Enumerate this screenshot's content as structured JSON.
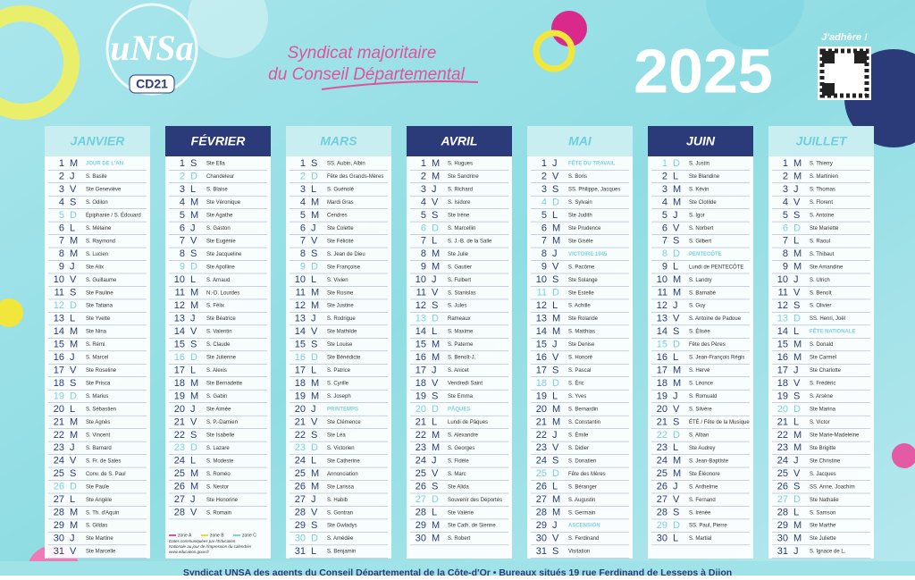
{
  "header": {
    "logo": "uNSa",
    "logo_sub": "CD21",
    "slogan": [
      "Syndicat majoritaire",
      "du Conseil Départemental"
    ],
    "year": "2025",
    "join": "J'adhère !"
  },
  "months": [
    {
      "name": "JANVIER",
      "days": [
        [
          1,
          "M",
          "JOUR DE L'AN"
        ],
        [
          2,
          "J",
          "S. Basile"
        ],
        [
          3,
          "V",
          "Ste Geneviève"
        ],
        [
          4,
          "S",
          "S. Odilon"
        ],
        [
          5,
          "D",
          "Épiphanie / S. Édouard"
        ],
        [
          6,
          "L",
          "S. Mélaine"
        ],
        [
          7,
          "M",
          "S. Raymond"
        ],
        [
          8,
          "M",
          "S. Lucien"
        ],
        [
          9,
          "J",
          "Ste Alix"
        ],
        [
          10,
          "V",
          "S. Guillaume"
        ],
        [
          11,
          "S",
          "Ste Pauline"
        ],
        [
          12,
          "D",
          "Ste Tatiana"
        ],
        [
          13,
          "L",
          "Ste Yvette"
        ],
        [
          14,
          "M",
          "Ste Nina"
        ],
        [
          15,
          "M",
          "S. Rémi"
        ],
        [
          16,
          "J",
          "S. Marcel"
        ],
        [
          17,
          "V",
          "Ste Roseline"
        ],
        [
          18,
          "S",
          "Ste Prisca"
        ],
        [
          19,
          "D",
          "S. Marius"
        ],
        [
          20,
          "L",
          "S. Sébastien"
        ],
        [
          21,
          "M",
          "Ste Agnès"
        ],
        [
          22,
          "M",
          "S. Vincent"
        ],
        [
          23,
          "J",
          "S. Barnard"
        ],
        [
          24,
          "V",
          "S. Fr. de Sales"
        ],
        [
          25,
          "S",
          "Conv. de S. Paul"
        ],
        [
          26,
          "D",
          "Ste Paule"
        ],
        [
          27,
          "L",
          "Ste Angèle"
        ],
        [
          28,
          "M",
          "S. Th. d'Aquin"
        ],
        [
          29,
          "M",
          "S. Gildas"
        ],
        [
          30,
          "J",
          "Ste Martine"
        ],
        [
          31,
          "V",
          "Ste Marcelle"
        ]
      ]
    },
    {
      "name": "FÉVRIER",
      "days": [
        [
          1,
          "S",
          "Ste Ella"
        ],
        [
          2,
          "D",
          "Chandeleur"
        ],
        [
          3,
          "L",
          "S. Blaise"
        ],
        [
          4,
          "M",
          "Ste Véronique"
        ],
        [
          5,
          "M",
          "Ste Agathe"
        ],
        [
          6,
          "J",
          "S. Gaston"
        ],
        [
          7,
          "V",
          "Ste Eugénie"
        ],
        [
          8,
          "S",
          "Ste Jacqueline"
        ],
        [
          9,
          "D",
          "Ste Apolline"
        ],
        [
          10,
          "L",
          "S. Arnaud"
        ],
        [
          11,
          "M",
          "N.-D. Lourdes"
        ],
        [
          12,
          "M",
          "S. Félix"
        ],
        [
          13,
          "J",
          "Ste Béatrice"
        ],
        [
          14,
          "V",
          "S. Valentin"
        ],
        [
          15,
          "S",
          "S. Claude"
        ],
        [
          16,
          "D",
          "Ste Julienne"
        ],
        [
          17,
          "L",
          "S. Alexis"
        ],
        [
          18,
          "M",
          "Ste Bernadette"
        ],
        [
          19,
          "M",
          "S. Gabin"
        ],
        [
          20,
          "J",
          "Ste Aimée"
        ],
        [
          21,
          "V",
          "S. P.-Damien"
        ],
        [
          22,
          "S",
          "Ste Isabelle"
        ],
        [
          23,
          "D",
          "S. Lazare"
        ],
        [
          24,
          "L",
          "S. Modeste"
        ],
        [
          25,
          "M",
          "S. Roméo"
        ],
        [
          26,
          "M",
          "S. Nestor"
        ],
        [
          27,
          "J",
          "Ste Honorine"
        ],
        [
          28,
          "V",
          "S. Romain"
        ]
      ]
    },
    {
      "name": "MARS",
      "days": [
        [
          1,
          "S",
          "SS. Aubin, Albin"
        ],
        [
          2,
          "D",
          "Fête des Grands-Mères"
        ],
        [
          3,
          "L",
          "S. Guénolé"
        ],
        [
          4,
          "M",
          "Mardi Gras"
        ],
        [
          5,
          "M",
          "Cendres"
        ],
        [
          6,
          "J",
          "Ste Colette"
        ],
        [
          7,
          "V",
          "Ste Félicité"
        ],
        [
          8,
          "S",
          "S. Jean de Dieu"
        ],
        [
          9,
          "D",
          "Ste Françoise"
        ],
        [
          10,
          "L",
          "S. Vivien"
        ],
        [
          11,
          "M",
          "Ste Rosine"
        ],
        [
          12,
          "M",
          "Ste Justine"
        ],
        [
          13,
          "J",
          "S. Rodrigue"
        ],
        [
          14,
          "V",
          "Ste Mathilde"
        ],
        [
          15,
          "S",
          "Ste Louise"
        ],
        [
          16,
          "D",
          "Ste Bénédicte"
        ],
        [
          17,
          "L",
          "S. Patrice"
        ],
        [
          18,
          "M",
          "S. Cyrille"
        ],
        [
          19,
          "M",
          "S. Joseph"
        ],
        [
          20,
          "J",
          "PRINTEMPS"
        ],
        [
          21,
          "V",
          "Ste Clémence"
        ],
        [
          22,
          "S",
          "Ste Léa"
        ],
        [
          23,
          "D",
          "S. Victorien"
        ],
        [
          24,
          "L",
          "Ste Catherine"
        ],
        [
          25,
          "M",
          "Annonciation"
        ],
        [
          26,
          "M",
          "Ste Larissa"
        ],
        [
          27,
          "J",
          "S. Habib"
        ],
        [
          28,
          "V",
          "S. Gontran"
        ],
        [
          29,
          "S",
          "Ste Gwladys"
        ],
        [
          30,
          "D",
          "S. Amédée"
        ],
        [
          31,
          "L",
          "S. Benjamin"
        ]
      ]
    },
    {
      "name": "AVRIL",
      "days": [
        [
          1,
          "M",
          "S. Hugues"
        ],
        [
          2,
          "M",
          "Ste Sandrine"
        ],
        [
          3,
          "J",
          "S. Richard"
        ],
        [
          4,
          "V",
          "S. Isidore"
        ],
        [
          5,
          "S",
          "Ste Irène"
        ],
        [
          6,
          "D",
          "S. Marcellin"
        ],
        [
          7,
          "L",
          "S. J.-B. de la Salle"
        ],
        [
          8,
          "M",
          "Ste Julie"
        ],
        [
          9,
          "M",
          "S. Gautier"
        ],
        [
          10,
          "J",
          "S. Fulbert"
        ],
        [
          11,
          "V",
          "S. Stanislas"
        ],
        [
          12,
          "S",
          "S. Jules"
        ],
        [
          13,
          "D",
          "Rameaux"
        ],
        [
          14,
          "L",
          "S. Maxime"
        ],
        [
          15,
          "M",
          "S. Paterne"
        ],
        [
          16,
          "M",
          "S. Benoît-J."
        ],
        [
          17,
          "J",
          "S. Anicet"
        ],
        [
          18,
          "V",
          "Vendredi Saint"
        ],
        [
          19,
          "S",
          "Ste Emma"
        ],
        [
          20,
          "D",
          "PÂQUES"
        ],
        [
          21,
          "L",
          "Lundi de Pâques"
        ],
        [
          22,
          "M",
          "S. Alexandre"
        ],
        [
          23,
          "M",
          "S. Georges"
        ],
        [
          24,
          "J",
          "S. Fidèle"
        ],
        [
          25,
          "V",
          "S. Marc"
        ],
        [
          26,
          "S",
          "Ste Alida"
        ],
        [
          27,
          "D",
          "Souvenir des Déportés"
        ],
        [
          28,
          "L",
          "Ste Valérie"
        ],
        [
          29,
          "M",
          "Ste Cath. de Sienne"
        ],
        [
          30,
          "M",
          "S. Robert"
        ]
      ]
    },
    {
      "name": "MAI",
      "days": [
        [
          1,
          "J",
          "FÊTE DU TRAVAIL"
        ],
        [
          2,
          "V",
          "S. Boris"
        ],
        [
          3,
          "S",
          "SS. Philippe, Jacques"
        ],
        [
          4,
          "D",
          "S. Sylvain"
        ],
        [
          5,
          "L",
          "Ste Judith"
        ],
        [
          6,
          "M",
          "Ste Prudence"
        ],
        [
          7,
          "M",
          "Ste Gisèle"
        ],
        [
          8,
          "J",
          "VICTOIRE 1945"
        ],
        [
          9,
          "V",
          "S. Pacôme"
        ],
        [
          10,
          "S",
          "Ste Solange"
        ],
        [
          11,
          "D",
          "Ste Estelle"
        ],
        [
          12,
          "L",
          "S. Achille"
        ],
        [
          13,
          "M",
          "Ste Rolande"
        ],
        [
          14,
          "M",
          "S. Matthias"
        ],
        [
          15,
          "J",
          "Ste Denise"
        ],
        [
          16,
          "V",
          "S. Honoré"
        ],
        [
          17,
          "S",
          "S. Pascal"
        ],
        [
          18,
          "D",
          "S. Éric"
        ],
        [
          19,
          "L",
          "S. Yves"
        ],
        [
          20,
          "M",
          "S. Bernardin"
        ],
        [
          21,
          "M",
          "S. Constantin"
        ],
        [
          22,
          "J",
          "S. Émile"
        ],
        [
          23,
          "V",
          "S. Didier"
        ],
        [
          24,
          "S",
          "S. Donatien"
        ],
        [
          25,
          "D",
          "Fête des Mères"
        ],
        [
          26,
          "L",
          "S. Béranger"
        ],
        [
          27,
          "M",
          "S. Augustin"
        ],
        [
          28,
          "M",
          "S. Germain"
        ],
        [
          29,
          "J",
          "ASCENSION"
        ],
        [
          30,
          "V",
          "S. Ferdinand"
        ],
        [
          31,
          "S",
          "Visitation"
        ]
      ]
    },
    {
      "name": "JUIN",
      "days": [
        [
          1,
          "D",
          "S. Justin"
        ],
        [
          2,
          "L",
          "Ste Blandine"
        ],
        [
          3,
          "M",
          "S. Kévin"
        ],
        [
          4,
          "M",
          "Ste Clotilde"
        ],
        [
          5,
          "J",
          "S. Igor"
        ],
        [
          6,
          "V",
          "S. Norbert"
        ],
        [
          7,
          "S",
          "S. Gilbert"
        ],
        [
          8,
          "D",
          "PENTECÔTE"
        ],
        [
          9,
          "L",
          "Lundi de PENTECÔTE"
        ],
        [
          10,
          "M",
          "S. Landry"
        ],
        [
          11,
          "M",
          "S. Barnabé"
        ],
        [
          12,
          "J",
          "S. Guy"
        ],
        [
          13,
          "V",
          "S. Antoine de Padoue"
        ],
        [
          14,
          "S",
          "S. Élisée"
        ],
        [
          15,
          "D",
          "Fête des Pères"
        ],
        [
          16,
          "L",
          "S. Jean-François Régis"
        ],
        [
          17,
          "M",
          "S. Hervé"
        ],
        [
          18,
          "M",
          "S. Léonce"
        ],
        [
          19,
          "J",
          "S. Romuald"
        ],
        [
          20,
          "V",
          "S. Silvère"
        ],
        [
          21,
          "S",
          "ÉTÉ / Fête de la Musique"
        ],
        [
          22,
          "D",
          "S. Alban"
        ],
        [
          23,
          "L",
          "Ste Audrey"
        ],
        [
          24,
          "M",
          "S. Jean-Baptiste"
        ],
        [
          25,
          "M",
          "Ste Éléonore"
        ],
        [
          26,
          "J",
          "S. Anthelme"
        ],
        [
          27,
          "V",
          "S. Fernand"
        ],
        [
          28,
          "S",
          "S. Irénée"
        ],
        [
          29,
          "D",
          "SS. Paul, Pierre"
        ],
        [
          30,
          "L",
          "S. Martial"
        ]
      ]
    },
    {
      "name": "JUILLET",
      "days": [
        [
          1,
          "M",
          "S. Thierry"
        ],
        [
          2,
          "M",
          "S. Martinien"
        ],
        [
          3,
          "J",
          "S. Thomas"
        ],
        [
          4,
          "V",
          "S. Florent"
        ],
        [
          5,
          "S",
          "S. Antoine"
        ],
        [
          6,
          "D",
          "Ste Mariette"
        ],
        [
          7,
          "L",
          "S. Raoul"
        ],
        [
          8,
          "M",
          "S. Thibaut"
        ],
        [
          9,
          "M",
          "Ste Amandine"
        ],
        [
          10,
          "J",
          "S. Ulrich"
        ],
        [
          11,
          "V",
          "S. Benoît"
        ],
        [
          12,
          "S",
          "S. Olivier"
        ],
        [
          13,
          "D",
          "SS. Henri, Joël"
        ],
        [
          14,
          "L",
          "FÊTE NATIONALE"
        ],
        [
          15,
          "M",
          "S. Donald"
        ],
        [
          16,
          "M",
          "Ste Carmel"
        ],
        [
          17,
          "J",
          "Ste Charlotte"
        ],
        [
          18,
          "V",
          "S. Frédéric"
        ],
        [
          19,
          "S",
          "S. Arsène"
        ],
        [
          20,
          "D",
          "Ste Marina"
        ],
        [
          21,
          "L",
          "S. Victor"
        ],
        [
          22,
          "M",
          "Ste Marie-Madeleine"
        ],
        [
          23,
          "M",
          "Ste Brigitte"
        ],
        [
          24,
          "J",
          "Ste Christine"
        ],
        [
          25,
          "V",
          "S. Jacques"
        ],
        [
          26,
          "S",
          "SS. Anne, Joachim"
        ],
        [
          27,
          "D",
          "Ste Nathalie"
        ],
        [
          28,
          "L",
          "S. Samson"
        ],
        [
          29,
          "M",
          "Ste Marthe"
        ],
        [
          30,
          "M",
          "Ste Juliette"
        ],
        [
          31,
          "J",
          "S. Ignace de L."
        ]
      ]
    }
  ],
  "legend": {
    "zones": [
      "zone A",
      "zone B",
      "zone C"
    ],
    "note": [
      "Dates communiquées par l'Education",
      "Nationale au jour de l'impression du calendrier",
      "www.education.gouv.fr"
    ]
  },
  "footer": "Syndicat UNSA des agents du Conseil Départemental de la Côte-d'Or  •  Bureaux situés 19 rue Ferdinand de Lesseps à Dijon"
}
